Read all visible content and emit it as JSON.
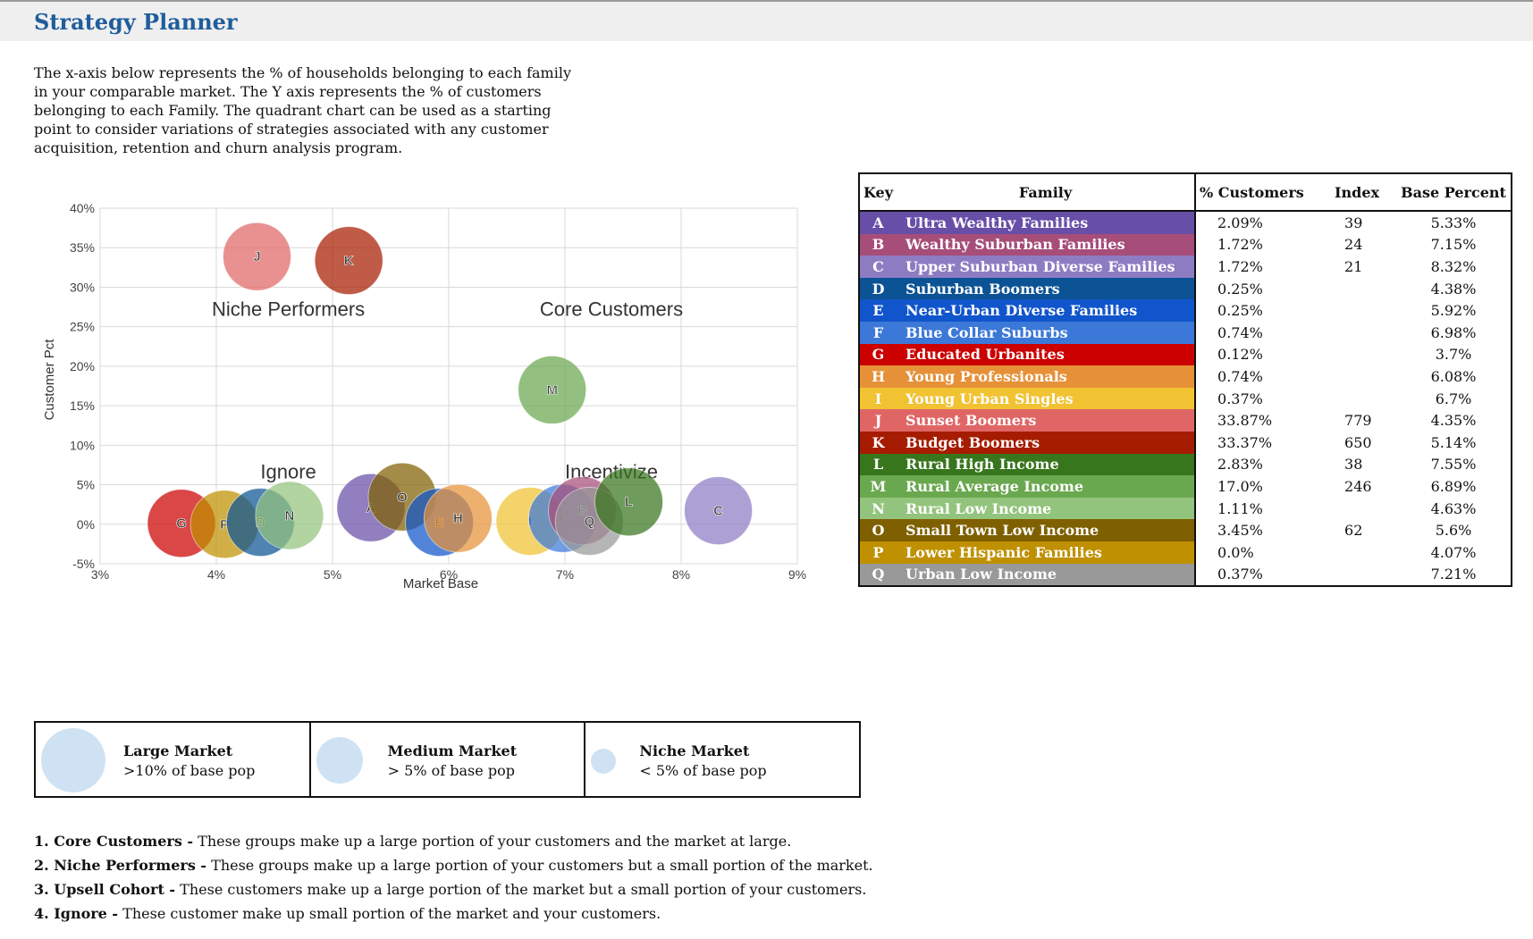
{
  "page": {
    "title": "Strategy Planner",
    "description": "The x-axis below represents the % of households belonging to each family in your comparable market. The Y axis represents the % of customers belonging to each Family. The quadrant chart can be used as a starting point to consider variations of strategies associated with any customer acquisition, retention and churn analysis program."
  },
  "chart_data": {
    "type": "scatter",
    "xlabel": "Market Base",
    "ylabel": "Customer Pct",
    "xlim": [
      3,
      9
    ],
    "ylim": [
      -5,
      40
    ],
    "x_ticks": [
      "3%",
      "4%",
      "5%",
      "6%",
      "7%",
      "8%",
      "9%"
    ],
    "y_ticks": [
      "40%",
      "35%",
      "30%",
      "25%",
      "20%",
      "15%",
      "10%",
      "5%",
      "0%",
      "-5%"
    ],
    "grid": true,
    "quadrant_labels": [
      {
        "text": "Niche Performers",
        "x": 4.62,
        "y": 27.3
      },
      {
        "text": "Core Customers",
        "x": 7.4,
        "y": 27.3
      },
      {
        "text": "Ignore",
        "x": 4.62,
        "y": 6.7
      },
      {
        "text": "Incentivize",
        "x": 7.4,
        "y": 6.7
      }
    ],
    "points": [
      {
        "key": "G",
        "x": 3.7,
        "y": 0.12,
        "size": "medium",
        "color": "#cc0000"
      },
      {
        "key": "P",
        "x": 4.07,
        "y": 0.0,
        "size": "medium",
        "color": "#bf9000"
      },
      {
        "key": "D",
        "x": 4.38,
        "y": 0.25,
        "size": "medium",
        "color": "#0b5394"
      },
      {
        "key": "N",
        "x": 4.63,
        "y": 1.11,
        "size": "medium",
        "color": "#93c47d"
      },
      {
        "key": "J",
        "x": 4.35,
        "y": 33.87,
        "size": "medium",
        "color": "#e06666"
      },
      {
        "key": "K",
        "x": 5.14,
        "y": 33.37,
        "size": "medium",
        "color": "#a61c00"
      },
      {
        "key": "A",
        "x": 5.33,
        "y": 2.09,
        "size": "medium",
        "color": "#674ea7"
      },
      {
        "key": "O",
        "x": 5.6,
        "y": 3.45,
        "size": "medium",
        "color": "#7f6000"
      },
      {
        "key": "E",
        "x": 5.92,
        "y": 0.25,
        "size": "medium",
        "color": "#1155cc"
      },
      {
        "key": "H",
        "x": 6.08,
        "y": 0.74,
        "size": "medium",
        "color": "#e69138"
      },
      {
        "key": "I",
        "x": 6.7,
        "y": 0.37,
        "size": "medium",
        "color": "#f1c232"
      },
      {
        "key": "M",
        "x": 6.89,
        "y": 17.0,
        "size": "medium",
        "color": "#6aa84f"
      },
      {
        "key": "F",
        "x": 6.98,
        "y": 0.74,
        "size": "medium",
        "color": "#3c78d8"
      },
      {
        "key": "B",
        "x": 7.15,
        "y": 1.72,
        "size": "medium",
        "color": "#a64d79"
      },
      {
        "key": "Q",
        "x": 7.21,
        "y": 0.37,
        "size": "medium",
        "color": "#999999"
      },
      {
        "key": "L",
        "x": 7.55,
        "y": 2.83,
        "size": "medium",
        "color": "#38761d"
      },
      {
        "key": "C",
        "x": 8.32,
        "y": 1.72,
        "size": "medium",
        "color": "#8e7cc3"
      }
    ]
  },
  "key_table": {
    "headers": {
      "key": "Key",
      "family": "Family",
      "pct": "% Customers",
      "index": "Index",
      "base": "Base Percent"
    },
    "rows": [
      {
        "key": "A",
        "family": "Ultra Wealthy Families",
        "pct": "2.09%",
        "index": "39",
        "base": "5.33%",
        "color": "#674ea7"
      },
      {
        "key": "B",
        "family": "Wealthy Suburban Families",
        "pct": "1.72%",
        "index": "24",
        "base": "7.15%",
        "color": "#a64d79"
      },
      {
        "key": "C",
        "family": "Upper Suburban Diverse Families",
        "pct": "1.72%",
        "index": "21",
        "base": "8.32%",
        "color": "#8e7cc3"
      },
      {
        "key": "D",
        "family": "Suburban Boomers",
        "pct": "0.25%",
        "index": "",
        "base": "4.38%",
        "color": "#0b5394"
      },
      {
        "key": "E",
        "family": "Near-Urban Diverse Families",
        "pct": "0.25%",
        "index": "",
        "base": "5.92%",
        "color": "#1155cc"
      },
      {
        "key": "F",
        "family": "Blue Collar Suburbs",
        "pct": "0.74%",
        "index": "",
        "base": "6.98%",
        "color": "#3c78d8"
      },
      {
        "key": "G",
        "family": "Educated Urbanites",
        "pct": "0.12%",
        "index": "",
        "base": "3.7%",
        "color": "#cc0000"
      },
      {
        "key": "H",
        "family": "Young Professionals",
        "pct": "0.74%",
        "index": "",
        "base": "6.08%",
        "color": "#e69138"
      },
      {
        "key": "I",
        "family": "Young Urban Singles",
        "pct": "0.37%",
        "index": "",
        "base": "6.7%",
        "color": "#f1c232"
      },
      {
        "key": "J",
        "family": "Sunset Boomers",
        "pct": "33.87%",
        "index": "779",
        "base": "4.35%",
        "color": "#e06666"
      },
      {
        "key": "K",
        "family": "Budget Boomers",
        "pct": "33.37%",
        "index": "650",
        "base": "5.14%",
        "color": "#a61c00"
      },
      {
        "key": "L",
        "family": "Rural High Income",
        "pct": "2.83%",
        "index": "38",
        "base": "7.55%",
        "color": "#38761d"
      },
      {
        "key": "M",
        "family": "Rural Average Income",
        "pct": "17.0%",
        "index": "246",
        "base": "6.89%",
        "color": "#6aa84f"
      },
      {
        "key": "N",
        "family": "Rural Low Income",
        "pct": "1.11%",
        "index": "",
        "base": "4.63%",
        "color": "#93c47d"
      },
      {
        "key": "O",
        "family": "Small Town Low Income",
        "pct": "3.45%",
        "index": "62",
        "base": "5.6%",
        "color": "#7f6000"
      },
      {
        "key": "P",
        "family": "Lower Hispanic Families",
        "pct": "0.0%",
        "index": "",
        "base": "4.07%",
        "color": "#bf9000"
      },
      {
        "key": "Q",
        "family": "Urban Low Income",
        "pct": "0.37%",
        "index": "",
        "base": "7.21%",
        "color": "#999999"
      }
    ]
  },
  "size_legend": [
    {
      "title": "Large Market",
      "subtitle": ">10% of base pop"
    },
    {
      "title": "Medium Market",
      "subtitle": "> 5% of base pop"
    },
    {
      "title": "Niche Market",
      "subtitle": "< 5% of base pop"
    }
  ],
  "notes": [
    {
      "label": "1. Core Customers -",
      "text": " These groups make up a large portion of your customers and the market at large."
    },
    {
      "label": "2. Niche Performers -",
      "text": " These groups make up a large portion of your customers but a small portion of the market."
    },
    {
      "label": "3. Upsell Cohort -",
      "text": " These customers make up a large portion of the market but a small portion of your customers."
    },
    {
      "label": "4. Ignore -",
      "text": " These customer make up small portion of the market and your customers."
    }
  ]
}
